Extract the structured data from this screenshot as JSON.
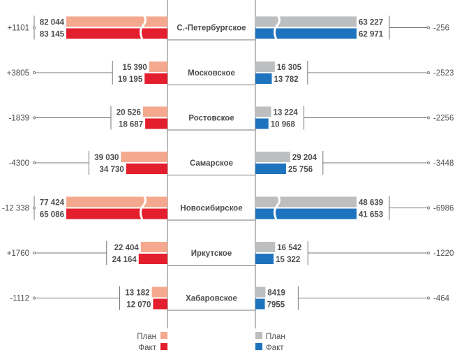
{
  "chart_data": {
    "type": "bar",
    "legend_placement": "bottom",
    "colors": {
      "left_plan": "#F4A98E",
      "left_fact": "#E31E2D",
      "right_plan": "#BDBEC0",
      "right_fact": "#1E73BE",
      "text": "#4D4D4F",
      "line": "#777777"
    },
    "categories": [
      "С.-Петербургское",
      "Московское",
      "Ростовское",
      "Самарское",
      "Новосибирское",
      "Иркутское",
      "Хабаровское"
    ],
    "series": [
      {
        "name": "План",
        "side": "left",
        "values": [
          82044,
          15390,
          20526,
          39030,
          77424,
          22404,
          13182
        ],
        "labels": [
          "82 044",
          "15 390",
          "20 526",
          "39 030",
          "77 424",
          "22 404",
          "13 182"
        ]
      },
      {
        "name": "Факт",
        "side": "left",
        "values": [
          83145,
          19195,
          18687,
          34730,
          65086,
          24164,
          12070
        ],
        "labels": [
          "83 145",
          "19 195",
          "18 687",
          "34 730",
          "65 086",
          "24 164",
          "12 070"
        ]
      },
      {
        "name": "План",
        "side": "right",
        "values": [
          63227,
          16305,
          13224,
          29204,
          48639,
          16542,
          8419
        ],
        "labels": [
          "63 227",
          "16 305",
          "13 224",
          "29 204",
          "48 639",
          "16 542",
          "8419"
        ]
      },
      {
        "name": "Факт",
        "side": "right",
        "values": [
          62971,
          13782,
          10968,
          25756,
          41653,
          15322,
          7955
        ],
        "labels": [
          "62 971",
          "13 782",
          "10 968",
          "25 756",
          "41 653",
          "15 322",
          "7955"
        ]
      }
    ],
    "left_differences": [
      "+1101",
      "+3805",
      "-1839",
      "-4300",
      "-12 338",
      "+1760",
      "-1112"
    ],
    "right_differences": [
      "-256",
      "-2523",
      "-2256",
      "-3448",
      "-6986",
      "-1220",
      "-464"
    ],
    "broken_bars": [
      0,
      4
    ]
  },
  "legend": {
    "left_plan": "План",
    "left_fact": "Факт",
    "right_plan": "План",
    "right_fact": "Факт"
  }
}
